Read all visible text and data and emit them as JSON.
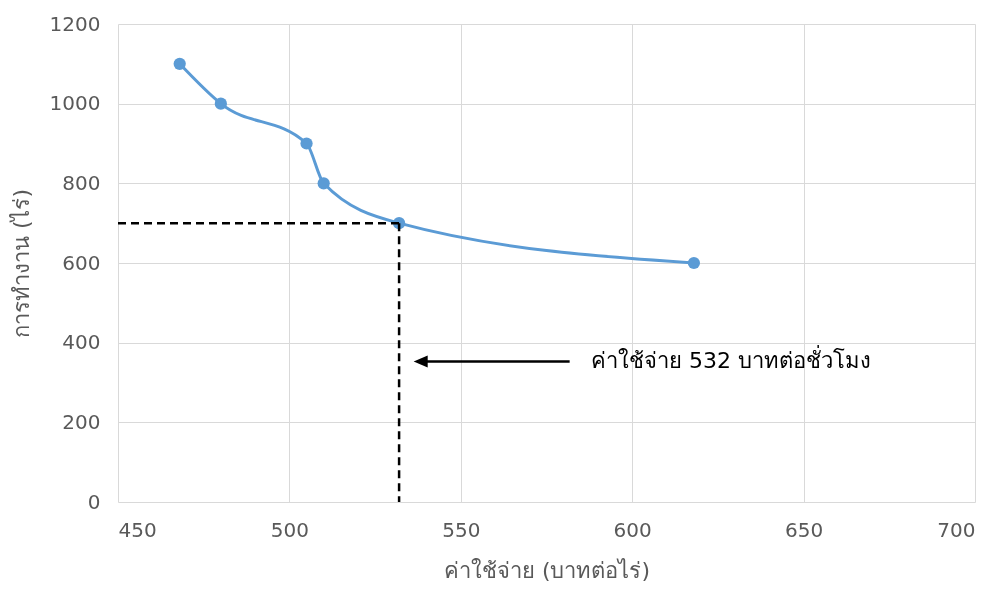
{
  "chart_data": {
    "type": "line",
    "xlabel": "ค่าใช้จ่าย (บาทต่อไร่)",
    "ylabel": "การทำงาน (ไร่)",
    "series": [
      {
        "color": "#5b9bd5",
        "x": [
          468,
          480,
          505,
          510,
          532,
          618
        ],
        "values": [
          1100,
          1000,
          900,
          800,
          700,
          600
        ],
        "marker": "circle",
        "line_style": "solid"
      },
      {
        "color": "#000000",
        "x": [
          450,
          532
        ],
        "values": [
          700,
          700
        ],
        "marker": "none",
        "line_style": "dashed"
      },
      {
        "color": "#000000",
        "x": [
          532,
          532
        ],
        "values": [
          700,
          0
        ],
        "marker": "none",
        "line_style": "dashed"
      }
    ],
    "annotations": [
      "ค่าใช้จ่าย 532 บาทต่อชั่วโมง"
    ],
    "xlim": [
      450,
      700
    ],
    "xticks": [
      450,
      500,
      550,
      600,
      650,
      700
    ],
    "ylim": [
      0,
      1200
    ],
    "yticks": [
      0,
      200,
      400,
      600,
      800,
      1000,
      1200
    ],
    "grid": true
  }
}
